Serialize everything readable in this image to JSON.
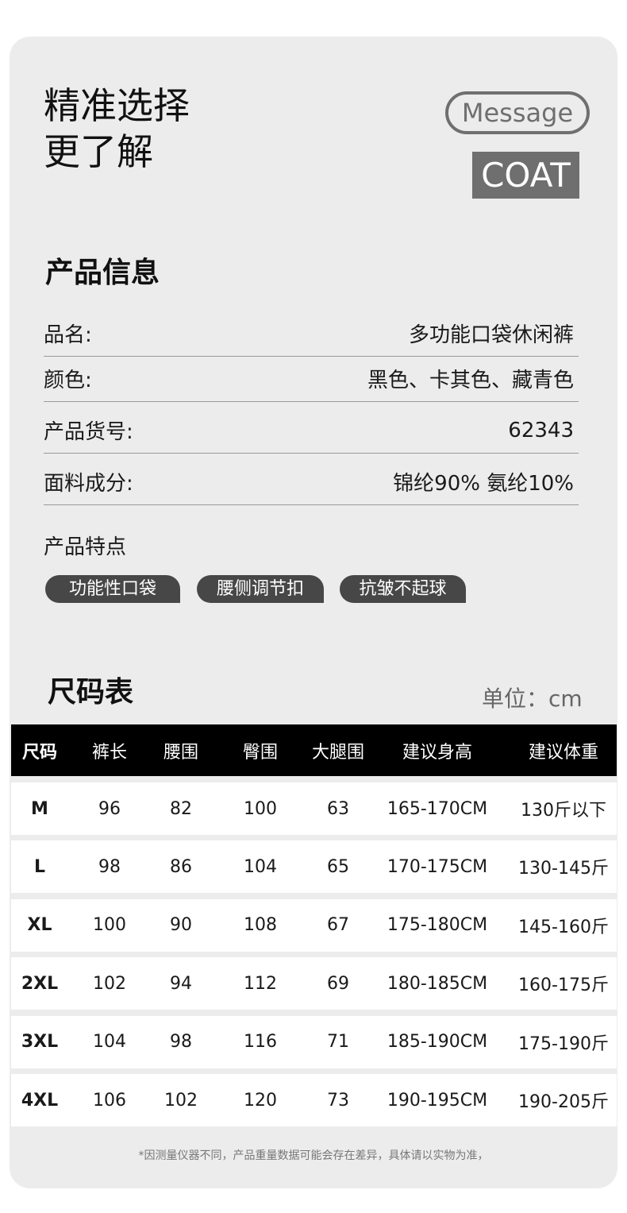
{
  "hero": {
    "line1": "精准选择",
    "line2": "更了解",
    "message": "Message",
    "coat": "COAT"
  },
  "product_info": {
    "title": "产品信息",
    "rows": [
      {
        "label": "品名:",
        "value": "多功能口袋休闲裤"
      },
      {
        "label": "颜色:",
        "value": "黑色、卡其色、藏青色"
      },
      {
        "label": "产品货号:",
        "value": "62343"
      },
      {
        "label": "面料成分:",
        "value": "锦纶90% 氨纶10%"
      }
    ],
    "features_label": "产品特点",
    "features": [
      "功能性口袋",
      "腰侧调节扣",
      "抗皱不起球"
    ]
  },
  "size_chart": {
    "title": "尺码表",
    "unit": "单位：cm",
    "headers": [
      "尺码",
      "裤长",
      "腰围",
      "臀围",
      "大腿围",
      "建议身高",
      "建议体重"
    ],
    "rows": [
      [
        "M",
        "96",
        "82",
        "100",
        "63",
        "165-170CM",
        "130斤以下"
      ],
      [
        "L",
        "98",
        "86",
        "104",
        "65",
        "170-175CM",
        "130-145斤"
      ],
      [
        "XL",
        "100",
        "90",
        "108",
        "67",
        "175-180CM",
        "145-160斤"
      ],
      [
        "2XL",
        "102",
        "94",
        "112",
        "69",
        "180-185CM",
        "160-175斤"
      ],
      [
        "3XL",
        "104",
        "98",
        "116",
        "71",
        "185-190CM",
        "175-190斤"
      ],
      [
        "4XL",
        "106",
        "102",
        "120",
        "73",
        "190-195CM",
        "190-205斤"
      ]
    ],
    "note": "*因测量仪器不同，产品重量数据可能会存在差异，具体请以实物为准，"
  }
}
